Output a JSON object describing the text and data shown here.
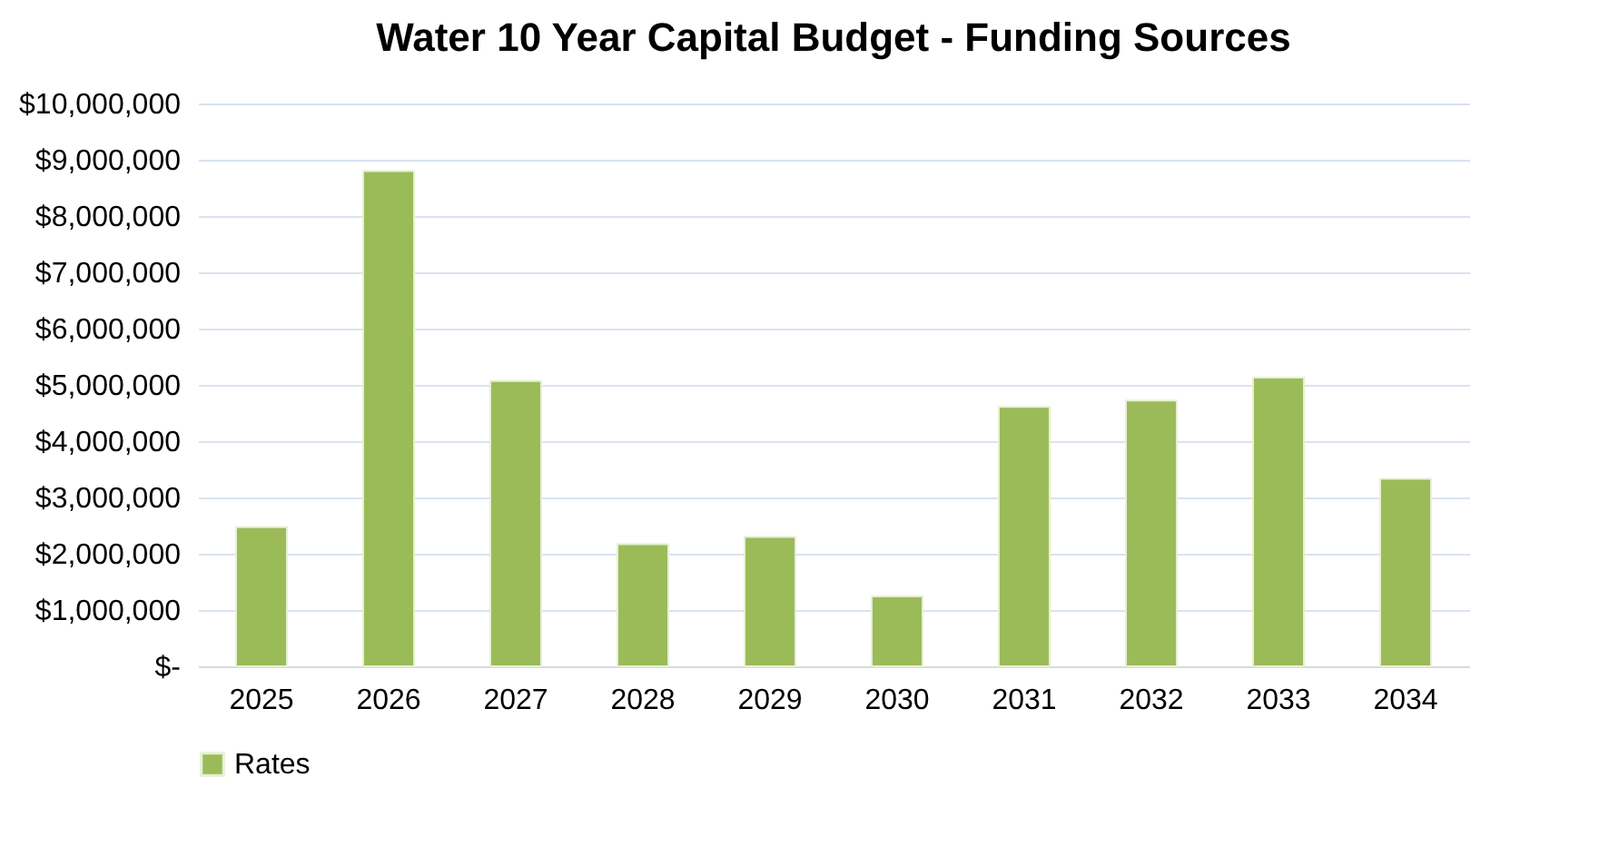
{
  "chart_data": {
    "type": "bar",
    "title": "Water 10 Year Capital Budget - Funding Sources",
    "categories": [
      "2025",
      "2026",
      "2027",
      "2028",
      "2029",
      "2030",
      "2031",
      "2032",
      "2033",
      "2034"
    ],
    "series": [
      {
        "name": "Rates",
        "color": "#9bbb59",
        "values": [
          2470000,
          8800000,
          5070000,
          2170000,
          2300000,
          1240000,
          4610000,
          4720000,
          5130000,
          3330000
        ]
      }
    ],
    "ylim": [
      0,
      10000000
    ],
    "yticks": [
      {
        "value": 0,
        "label": "$-"
      },
      {
        "value": 1000000,
        "label": "$1,000,000"
      },
      {
        "value": 2000000,
        "label": "$2,000,000"
      },
      {
        "value": 3000000,
        "label": "$3,000,000"
      },
      {
        "value": 4000000,
        "label": "$4,000,000"
      },
      {
        "value": 5000000,
        "label": "$5,000,000"
      },
      {
        "value": 6000000,
        "label": "$6,000,000"
      },
      {
        "value": 7000000,
        "label": "$7,000,000"
      },
      {
        "value": 8000000,
        "label": "$8,000,000"
      },
      {
        "value": 9000000,
        "label": "$9,000,000"
      },
      {
        "value": 10000000,
        "label": "$10,000,000"
      }
    ],
    "grid": "y",
    "legend": "bottom"
  }
}
